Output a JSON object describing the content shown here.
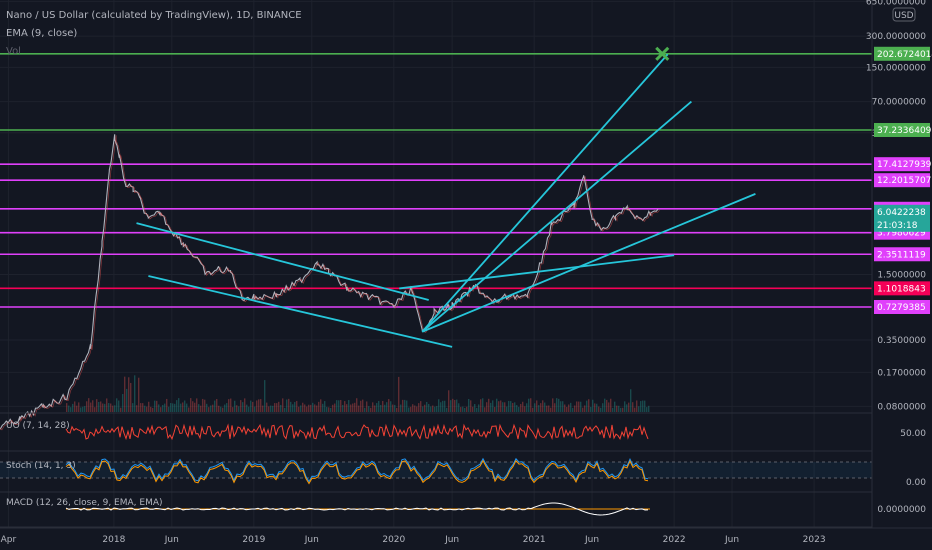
{
  "header": {
    "title": "Nano / US Dollar (calculated by TradingView), 1D, BINANCE",
    "indicator_ema": "EMA (9, close)",
    "indicator_vol": "Vol"
  },
  "colors": {
    "background": "#131722",
    "green_line": "#4caf50",
    "magenta_line": "#e040fb",
    "pink_line": "#f50057",
    "cyan_line": "#26c6da",
    "price_line": "#b0b3bd",
    "uo_line": "#f44336",
    "stoch_k": "#2196f3",
    "stoch_d": "#ff9800"
  },
  "chart_data": {
    "type": "line",
    "scale": "log",
    "currency": "USD",
    "price_axis_ticks": [
      "650.0000000",
      "300.0000000",
      "150.0000000",
      "70.0000000",
      "35.0000000",
      "1.5000000",
      "0.3500000",
      "0.1700000",
      "0.0800000"
    ],
    "time_axis_ticks": [
      "Apr",
      "2018",
      "Jun",
      "2019",
      "Jun",
      "2020",
      "Jun",
      "2021",
      "Jun",
      "2022",
      "Jun",
      "2023"
    ],
    "current_price": "6.0422238",
    "countdown": "21:03:18",
    "horizontal_levels": [
      {
        "label": "202.6724014",
        "value": 202.6724014,
        "color": "#4caf50"
      },
      {
        "label": "37.2336409",
        "value": 37.2336409,
        "color": "#4caf50"
      },
      {
        "label": "17.4127939",
        "value": 17.4127939,
        "color": "#e040fb"
      },
      {
        "label": "12.2015707",
        "value": 12.2015707,
        "color": "#e040fb"
      },
      {
        "label": "6.4608829",
        "value": 6.4608829,
        "color": "#e040fb"
      },
      {
        "label": "3.7980629",
        "value": 3.7980629,
        "color": "#e040fb"
      },
      {
        "label": "2.3511119",
        "value": 2.3511119,
        "color": "#e040fb"
      },
      {
        "label": "1.1018843",
        "value": 1.1018843,
        "color": "#f50057"
      },
      {
        "label": "0.7279385",
        "value": 0.7279385,
        "color": "#e040fb"
      }
    ],
    "price_series": [
      [
        "2017-03-01",
        0.05
      ],
      [
        "2017-05-01",
        0.06
      ],
      [
        "2017-07-01",
        0.08
      ],
      [
        "2017-09-01",
        0.1
      ],
      [
        "2017-11-01",
        0.3
      ],
      [
        "2017-12-01",
        3
      ],
      [
        "2017-12-20",
        15
      ],
      [
        "2018-01-03",
        32
      ],
      [
        "2018-01-15",
        20
      ],
      [
        "2018-02-01",
        11
      ],
      [
        "2018-02-20",
        10
      ],
      [
        "2018-03-10",
        8
      ],
      [
        "2018-04-01",
        5
      ],
      [
        "2018-05-01",
        6
      ],
      [
        "2018-06-01",
        4
      ],
      [
        "2018-07-01",
        3
      ],
      [
        "2018-08-01",
        2.2
      ],
      [
        "2018-09-01",
        1.5
      ],
      [
        "2018-10-01",
        1.7
      ],
      [
        "2018-11-01",
        1.6
      ],
      [
        "2018-12-01",
        0.9
      ],
      [
        "2019-01-01",
        0.9
      ],
      [
        "2019-03-01",
        0.95
      ],
      [
        "2019-05-01",
        1.3
      ],
      [
        "2019-06-15",
        2.0
      ],
      [
        "2019-07-15",
        1.6
      ],
      [
        "2019-09-01",
        1.1
      ],
      [
        "2019-11-01",
        0.9
      ],
      [
        "2020-01-01",
        0.75
      ],
      [
        "2020-02-15",
        1.1
      ],
      [
        "2020-03-15",
        0.42
      ],
      [
        "2020-04-15",
        0.65
      ],
      [
        "2020-06-01",
        0.75
      ],
      [
        "2020-08-01",
        1.15
      ],
      [
        "2020-09-15",
        0.8
      ],
      [
        "2020-11-01",
        0.95
      ],
      [
        "2020-12-15",
        0.9
      ],
      [
        "2021-01-15",
        1.8
      ],
      [
        "2021-02-15",
        4.5
      ],
      [
        "2021-03-15",
        5.5
      ],
      [
        "2021-04-15",
        7
      ],
      [
        "2021-05-10",
        13
      ],
      [
        "2021-06-01",
        5.2
      ],
      [
        "2021-06-25",
        4.0
      ],
      [
        "2021-08-01",
        5.5
      ],
      [
        "2021-09-01",
        6.5
      ],
      [
        "2021-10-01",
        5.0
      ],
      [
        "2021-11-01",
        6.0
      ],
      [
        "2021-11-20",
        6.04
      ]
    ],
    "trendlines": [
      {
        "from": [
          "2020-03-15",
          0.42
        ],
        "to": [
          "2021-12-15",
          200
        ]
      },
      {
        "from": [
          "2020-03-15",
          0.42
        ],
        "to": [
          "2022-02-15",
          70
        ]
      },
      {
        "from": [
          "2020-03-15",
          0.42
        ],
        "to": [
          "2022-08-01",
          9.0
        ]
      },
      {
        "from": [
          "2018-03-01",
          4.7
        ],
        "to": [
          "2020-04-01",
          0.85
        ]
      },
      {
        "from": [
          "2018-04-01",
          1.45
        ],
        "to": [
          "2020-06-01",
          0.3
        ]
      },
      {
        "from": [
          "2020-01-15",
          1.1
        ],
        "to": [
          "2022-01-01",
          2.3
        ]
      }
    ],
    "target_marker": {
      "date": "2021-12-01",
      "value": 202.67
    },
    "oscillators": {
      "uo": {
        "label": "UO (7, 14, 28)",
        "ticks": [
          "50.00"
        ]
      },
      "stoch": {
        "label": "Stoch (14, 1, 3)",
        "ticks": [
          "0.00"
        ]
      },
      "macd": {
        "label": "MACD (12, 26, close, 9, EMA, EMA)",
        "ticks": [
          "0.0000000"
        ]
      }
    }
  }
}
